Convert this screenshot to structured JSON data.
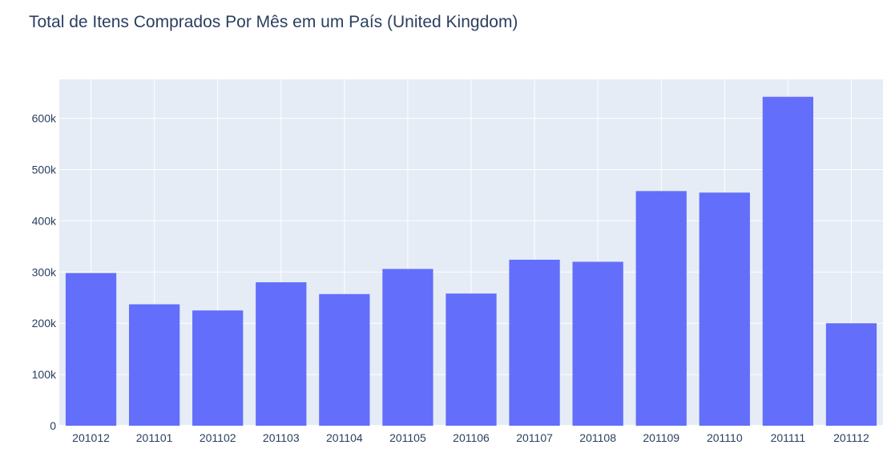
{
  "chart_data": {
    "type": "bar",
    "title": "Total de Itens Comprados Por Mês em um País (United Kingdom)",
    "categories": [
      "201012",
      "201101",
      "201102",
      "201103",
      "201104",
      "201105",
      "201106",
      "201107",
      "201108",
      "201109",
      "201110",
      "201111",
      "201112"
    ],
    "values": [
      298000,
      237000,
      225000,
      280000,
      257000,
      306000,
      258000,
      324000,
      320000,
      458000,
      455000,
      642000,
      200000
    ],
    "y_ticks": [
      "0",
      "100k",
      "200k",
      "300k",
      "400k",
      "500k",
      "600k"
    ],
    "y_tick_values": [
      0,
      100000,
      200000,
      300000,
      400000,
      500000,
      600000
    ],
    "ylim": [
      0,
      676000
    ],
    "xlabel": "",
    "ylabel": "",
    "grid": true,
    "bar_color": "#636efa",
    "plot_bg": "#e5ecf6",
    "grid_color": "#ffffff",
    "text_color": "#2a3f5f"
  }
}
